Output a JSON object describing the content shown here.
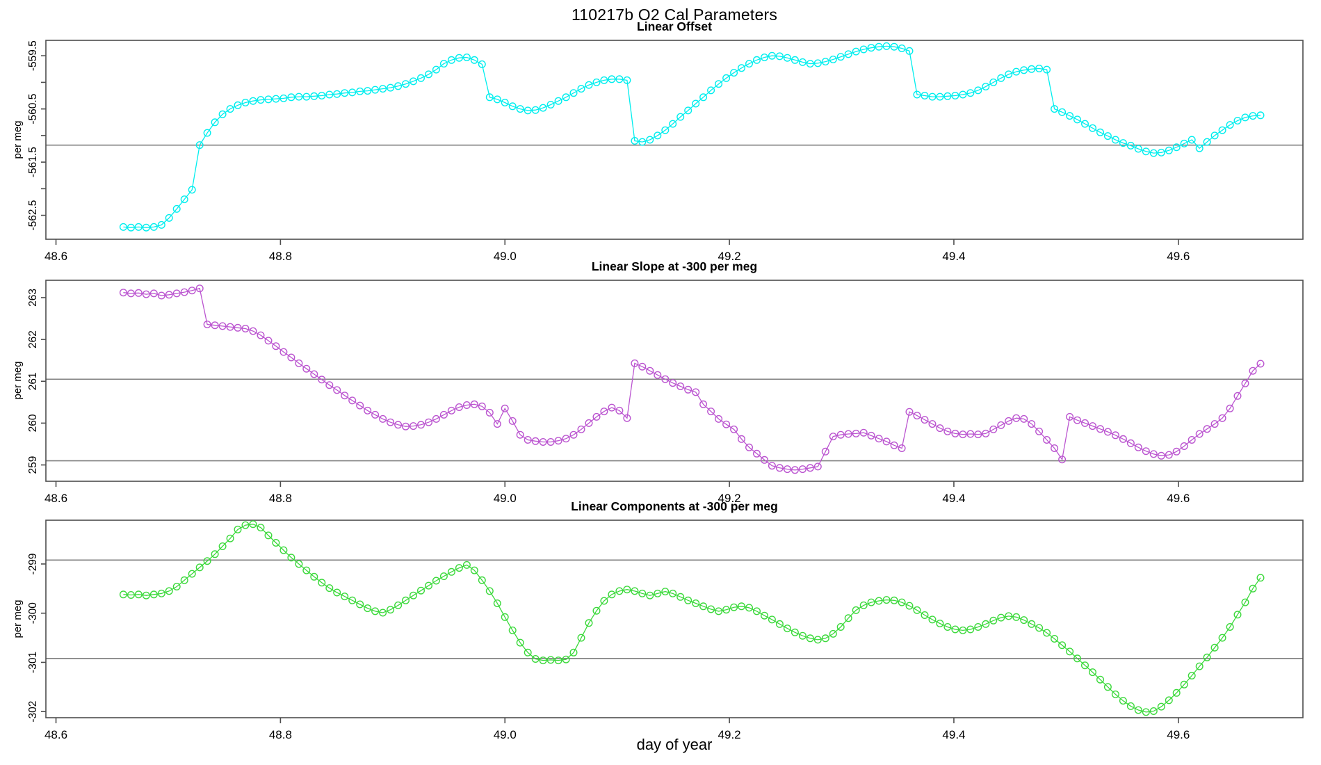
{
  "page_title": "110217b   O2 Cal Parameters",
  "colors": {
    "offset_series": "#00EEEE",
    "slope_series": "#BB55D0",
    "components_series": "#3CD93C",
    "reference_line": "#808080",
    "frame": "#4D4D4D",
    "tick_text": "#000000"
  },
  "chart_data": {
    "type": "line",
    "xlabel": "day of year",
    "xlim": [
      48.591,
      49.711
    ],
    "xticks": [
      48.6,
      48.8,
      49.0,
      49.2,
      49.4,
      49.6
    ],
    "xtick_labels": [
      "48.6",
      "48.8",
      "49.0",
      "49.2",
      "49.4",
      "49.6"
    ],
    "grid": "off",
    "legend": "none",
    "marker": "open-circle",
    "x": [
      48.66,
      48.6668,
      48.6736,
      48.6804,
      48.6872,
      48.694,
      48.7008,
      48.7076,
      48.7144,
      48.7212,
      48.728,
      48.7348,
      48.7416,
      48.7484,
      48.7552,
      48.762,
      48.7688,
      48.7756,
      48.7824,
      48.7892,
      48.796,
      48.8028,
      48.8096,
      48.8164,
      48.8232,
      48.83,
      48.8368,
      48.8436,
      48.8504,
      48.8572,
      48.864,
      48.8708,
      48.8776,
      48.8844,
      48.8912,
      48.898,
      48.9048,
      48.9116,
      48.9184,
      48.9252,
      48.932,
      48.9388,
      48.9456,
      48.9524,
      48.9592,
      48.966,
      48.9728,
      48.9796,
      48.9864,
      48.9932,
      49.0,
      49.0068,
      49.0136,
      49.0204,
      49.0272,
      49.034,
      49.0408,
      49.0476,
      49.0544,
      49.0612,
      49.068,
      49.0748,
      49.0816,
      49.0884,
      49.0952,
      49.102,
      49.1088,
      49.1156,
      49.1224,
      49.1292,
      49.136,
      49.1428,
      49.1496,
      49.1564,
      49.1632,
      49.17,
      49.1768,
      49.1836,
      49.1904,
      49.1972,
      49.204,
      49.2108,
      49.2176,
      49.2244,
      49.2312,
      49.238,
      49.2448,
      49.2516,
      49.2584,
      49.2652,
      49.272,
      49.2788,
      49.2856,
      49.2924,
      49.2992,
      49.306,
      49.3128,
      49.3196,
      49.3264,
      49.3332,
      49.34,
      49.3468,
      49.3536,
      49.3604,
      49.3672,
      49.374,
      49.3808,
      49.3876,
      49.3944,
      49.4012,
      49.408,
      49.4148,
      49.4216,
      49.4284,
      49.4352,
      49.442,
      49.4488,
      49.4556,
      49.4624,
      49.4692,
      49.476,
      49.4828,
      49.4896,
      49.4964,
      49.5032,
      49.51,
      49.5168,
      49.5236,
      49.5304,
      49.5372,
      49.544,
      49.5508,
      49.5576,
      49.5644,
      49.5712,
      49.578,
      49.5848,
      49.5916,
      49.5984,
      49.6052,
      49.612,
      49.6188,
      49.6256,
      49.6324,
      49.6392,
      49.646,
      49.6528,
      49.6596,
      49.6664,
      49.6732
    ],
    "panels": [
      {
        "title": "Linear Offset",
        "ylabel": "per meg",
        "series_name": "linear-offset",
        "ylim": [
          -562.95,
          -559.21
        ],
        "yticks": [
          -559.5,
          -560,
          -560.5,
          -561,
          -561.5,
          -562,
          -562.5
        ],
        "ytick_labels": [
          "-559.5",
          "",
          "-560.5",
          "",
          "-561.5",
          "",
          "-562.5"
        ],
        "ref_lines": [
          -561.18
        ],
        "values": [
          -562.72,
          -562.73,
          -562.72,
          -562.73,
          -562.72,
          -562.68,
          -562.55,
          -562.38,
          -562.2,
          -562.02,
          -561.18,
          -560.95,
          -560.75,
          -560.6,
          -560.5,
          -560.43,
          -560.38,
          -560.35,
          -560.33,
          -560.32,
          -560.31,
          -560.3,
          -560.28,
          -560.27,
          -560.27,
          -560.26,
          -560.25,
          -560.23,
          -560.22,
          -560.2,
          -560.19,
          -560.17,
          -560.16,
          -560.14,
          -560.12,
          -560.1,
          -560.07,
          -560.03,
          -559.98,
          -559.92,
          -559.85,
          -559.76,
          -559.65,
          -559.58,
          -559.54,
          -559.53,
          -559.58,
          -559.66,
          -560.28,
          -560.32,
          -560.38,
          -560.45,
          -560.5,
          -560.53,
          -560.52,
          -560.48,
          -560.42,
          -560.35,
          -560.28,
          -560.2,
          -560.12,
          -560.05,
          -560.0,
          -559.96,
          -559.94,
          -559.94,
          -559.96,
          -561.1,
          -561.12,
          -561.08,
          -561.0,
          -560.9,
          -560.78,
          -560.65,
          -560.53,
          -560.4,
          -560.28,
          -560.15,
          -560.03,
          -559.92,
          -559.82,
          -559.73,
          -559.65,
          -559.58,
          -559.53,
          -559.5,
          -559.51,
          -559.54,
          -559.58,
          -559.62,
          -559.65,
          -559.64,
          -559.61,
          -559.57,
          -559.52,
          -559.47,
          -559.42,
          -559.38,
          -559.35,
          -559.33,
          -559.32,
          -559.33,
          -559.36,
          -559.41,
          -560.23,
          -560.25,
          -560.27,
          -560.27,
          -560.26,
          -560.25,
          -560.23,
          -560.2,
          -560.15,
          -560.08,
          -560.0,
          -559.92,
          -559.85,
          -559.8,
          -559.77,
          -559.75,
          -559.74,
          -559.76,
          -560.5,
          -560.56,
          -560.63,
          -560.7,
          -560.78,
          -560.86,
          -560.94,
          -561.01,
          -561.08,
          -561.14,
          -561.19,
          -561.25,
          -561.3,
          -561.33,
          -561.32,
          -561.28,
          -561.22,
          -561.15,
          -561.08,
          -561.24,
          -561.12,
          -561.0,
          -560.9,
          -560.8,
          -560.72,
          -560.66,
          -560.63,
          -560.62
        ]
      },
      {
        "title": "Linear Slope at -300 per meg",
        "ylabel": "per meg",
        "series_name": "linear-slope",
        "ylim": [
          258.61,
          263.415
        ],
        "yticks": [
          263,
          262,
          261,
          260,
          259
        ],
        "ytick_labels": [
          "263",
          "262",
          "261",
          "260",
          "259"
        ],
        "ref_lines": [
          261.05,
          259.1
        ],
        "values": [
          263.12,
          263.1,
          263.11,
          263.08,
          263.1,
          263.05,
          263.07,
          263.1,
          263.13,
          263.17,
          263.22,
          262.36,
          262.34,
          262.32,
          262.3,
          262.28,
          262.26,
          262.2,
          262.1,
          261.97,
          261.84,
          261.7,
          261.57,
          261.43,
          261.3,
          261.17,
          261.04,
          260.91,
          260.79,
          260.66,
          260.54,
          260.42,
          260.3,
          260.2,
          260.1,
          260.02,
          259.96,
          259.92,
          259.93,
          259.96,
          260.02,
          260.1,
          260.2,
          260.3,
          260.38,
          260.43,
          260.45,
          260.4,
          260.25,
          259.98,
          260.35,
          260.05,
          259.72,
          259.6,
          259.57,
          259.55,
          259.55,
          259.58,
          259.63,
          259.72,
          259.85,
          260.0,
          260.15,
          260.28,
          260.37,
          260.3,
          260.12,
          261.43,
          261.35,
          261.25,
          261.15,
          261.05,
          260.96,
          260.88,
          260.8,
          260.74,
          260.45,
          260.28,
          260.1,
          259.97,
          259.85,
          259.62,
          259.42,
          259.27,
          259.12,
          258.98,
          258.93,
          258.9,
          258.88,
          258.9,
          258.93,
          258.96,
          259.32,
          259.68,
          259.72,
          259.74,
          259.75,
          259.77,
          259.7,
          259.63,
          259.56,
          259.47,
          259.4,
          260.27,
          260.18,
          260.08,
          259.98,
          259.88,
          259.8,
          259.75,
          259.73,
          259.74,
          259.73,
          259.75,
          259.85,
          259.95,
          260.05,
          260.12,
          260.1,
          259.98,
          259.8,
          259.6,
          259.4,
          259.13,
          260.15,
          260.07,
          260.0,
          259.93,
          259.86,
          259.79,
          259.71,
          259.62,
          259.52,
          259.42,
          259.33,
          259.26,
          259.22,
          259.24,
          259.32,
          259.45,
          259.6,
          259.74,
          259.86,
          259.98,
          260.12,
          260.35,
          260.65,
          260.95,
          261.25,
          261.42
        ]
      },
      {
        "title": "Linear Components at -300 per meg",
        "ylabel": "per meg",
        "series_name": "linear-components",
        "ylim": [
          -302.125,
          -298.11
        ],
        "yticks": [
          -299,
          -300,
          -301,
          -302
        ],
        "ytick_labels": [
          "-299",
          "-300",
          "-301",
          "-302"
        ],
        "ref_lines": [
          -298.92,
          -300.92
        ],
        "values": [
          -299.62,
          -299.63,
          -299.62,
          -299.64,
          -299.62,
          -299.6,
          -299.55,
          -299.46,
          -299.33,
          -299.2,
          -299.07,
          -298.94,
          -298.8,
          -298.64,
          -298.48,
          -298.3,
          -298.21,
          -298.19,
          -298.26,
          -298.42,
          -298.57,
          -298.72,
          -298.87,
          -299.0,
          -299.13,
          -299.26,
          -299.38,
          -299.49,
          -299.58,
          -299.66,
          -299.74,
          -299.82,
          -299.9,
          -299.96,
          -299.99,
          -299.93,
          -299.84,
          -299.74,
          -299.64,
          -299.54,
          -299.44,
          -299.34,
          -299.25,
          -299.16,
          -299.08,
          -299.02,
          -299.13,
          -299.33,
          -299.55,
          -299.8,
          -300.08,
          -300.35,
          -300.6,
          -300.8,
          -300.93,
          -300.96,
          -300.95,
          -300.96,
          -300.94,
          -300.8,
          -300.5,
          -300.2,
          -299.95,
          -299.75,
          -299.62,
          -299.55,
          -299.52,
          -299.55,
          -299.6,
          -299.64,
          -299.6,
          -299.56,
          -299.6,
          -299.67,
          -299.74,
          -299.8,
          -299.86,
          -299.92,
          -299.96,
          -299.93,
          -299.88,
          -299.86,
          -299.89,
          -299.96,
          -300.05,
          -300.13,
          -300.22,
          -300.31,
          -300.39,
          -300.46,
          -300.51,
          -300.54,
          -300.51,
          -300.42,
          -300.28,
          -300.1,
          -299.94,
          -299.84,
          -299.78,
          -299.75,
          -299.73,
          -299.74,
          -299.78,
          -299.85,
          -299.94,
          -300.04,
          -300.13,
          -300.21,
          -300.28,
          -300.33,
          -300.35,
          -300.33,
          -300.28,
          -300.22,
          -300.15,
          -300.09,
          -300.06,
          -300.08,
          -300.14,
          -300.22,
          -300.3,
          -300.4,
          -300.52,
          -300.65,
          -300.78,
          -300.92,
          -301.06,
          -301.2,
          -301.35,
          -301.5,
          -301.65,
          -301.78,
          -301.89,
          -301.97,
          -302.01,
          -301.99,
          -301.9,
          -301.77,
          -301.62,
          -301.45,
          -301.27,
          -301.08,
          -300.9,
          -300.7,
          -300.5,
          -300.28,
          -300.03,
          -299.78,
          -299.5,
          -299.28
        ]
      }
    ]
  }
}
